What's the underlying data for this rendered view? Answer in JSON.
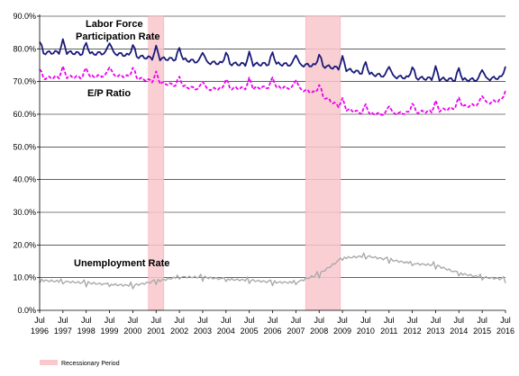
{
  "chart_data": {
    "type": "line",
    "title": "",
    "xlabel": "",
    "ylabel": "",
    "ylim": [
      0,
      90
    ],
    "y_ticks": [
      "0.0%",
      "10.0%",
      "20.0%",
      "30.0%",
      "40.0%",
      "50.0%",
      "60.0%",
      "70.0%",
      "80.0%",
      "90.0%"
    ],
    "x_ticks": [
      {
        "month": "Jul",
        "year": "1996"
      },
      {
        "month": "Jul",
        "year": "1997"
      },
      {
        "month": "Jul",
        "year": "1998"
      },
      {
        "month": "Jul",
        "year": "1999"
      },
      {
        "month": "Jul",
        "year": "2000"
      },
      {
        "month": "Jul",
        "year": "2001"
      },
      {
        "month": "Jul",
        "year": "2002"
      },
      {
        "month": "Jul",
        "year": "2003"
      },
      {
        "month": "Jul",
        "year": "2004"
      },
      {
        "month": "Jul",
        "year": "2005"
      },
      {
        "month": "Jul",
        "year": "2006"
      },
      {
        "month": "Jul",
        "year": "2007"
      },
      {
        "month": "Jul",
        "year": "2008"
      },
      {
        "month": "Jul",
        "year": "2009"
      },
      {
        "month": "Jul",
        "year": "2010"
      },
      {
        "month": "Jul",
        "year": "2011"
      },
      {
        "month": "Jul",
        "year": "2012"
      },
      {
        "month": "Jul",
        "year": "2013"
      },
      {
        "month": "Jul",
        "year": "2014"
      },
      {
        "month": "Jul",
        "year": "2015"
      },
      {
        "month": "Jul",
        "year": "2016"
      }
    ],
    "recessions": [
      {
        "start": "2001-03",
        "end": "2001-11"
      },
      {
        "start": "2007-12",
        "end": "2009-06"
      }
    ],
    "legend": {
      "label": "Recessionary Period",
      "placement": "bottom-left"
    },
    "series_labels": {
      "lfpr": "Labor Force\nParticipation Rate",
      "ep": "E/P Ratio",
      "ur": "Unemployment  Rate"
    },
    "series": [
      {
        "key": "lfpr",
        "color": "#1a1a7a",
        "style": "solid",
        "x": [
          "1996-07",
          "1997-07",
          "1998-07",
          "1999-07",
          "2000-07",
          "2001-07",
          "2002-07",
          "2003-07",
          "2004-07",
          "2005-07",
          "2006-07",
          "2007-07",
          "2008-07",
          "2009-07",
          "2010-07",
          "2011-07",
          "2012-07",
          "2013-07",
          "2014-07",
          "2015-07",
          "2016-07"
        ],
        "values": [
          79.5,
          79.8,
          79.2,
          79.6,
          78.6,
          77.8,
          77.6,
          76.7,
          76.3,
          76.0,
          76.2,
          75.9,
          75.7,
          74.7,
          73.2,
          72.4,
          71.9,
          71.6,
          71.3,
          71.4,
          72.2
        ],
        "amplitude": 2.2
      },
      {
        "key": "ep",
        "color": "#ee00ee",
        "style": "dashed",
        "x": [
          "1996-07",
          "1997-07",
          "1998-07",
          "1999-07",
          "2000-07",
          "2001-07",
          "2002-07",
          "2003-07",
          "2004-07",
          "2005-07",
          "2006-07",
          "2007-07",
          "2008-07",
          "2009-07",
          "2010-07",
          "2011-07",
          "2012-07",
          "2013-07",
          "2014-07",
          "2015-07",
          "2016-07"
        ],
        "values": [
          71.6,
          72.1,
          72.0,
          72.6,
          72.1,
          70.5,
          69.3,
          68.2,
          68.6,
          68.6,
          69.0,
          68.6,
          66.9,
          62.4,
          60.8,
          60.7,
          61.2,
          61.6,
          62.8,
          63.8,
          65.2
        ],
        "amplitude": 1.8
      },
      {
        "key": "ur",
        "color": "#aaaaaa",
        "style": "solid",
        "x": [
          "1996-07",
          "1997-07",
          "1998-07",
          "1999-07",
          "2000-07",
          "2001-07",
          "2002-07",
          "2003-07",
          "2004-07",
          "2005-07",
          "2006-07",
          "2007-07",
          "2008-07",
          "2009-07",
          "2010-07",
          "2011-07",
          "2012-07",
          "2013-07",
          "2014-07",
          "2015-07",
          "2016-07"
        ],
        "values": [
          9.2,
          8.8,
          8.4,
          7.9,
          7.6,
          8.9,
          10.2,
          10.1,
          9.5,
          9.2,
          8.6,
          8.5,
          11.1,
          16.0,
          16.6,
          15.5,
          14.3,
          13.8,
          11.3,
          10.1,
          9.5
        ],
        "amplitude": 0.9
      }
    ]
  }
}
